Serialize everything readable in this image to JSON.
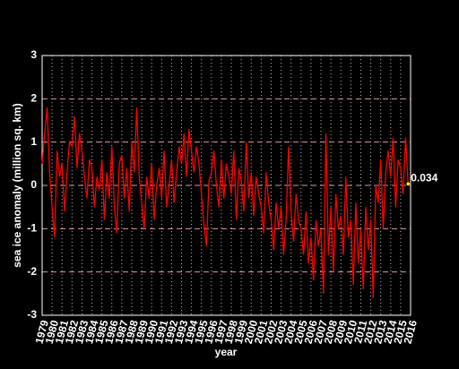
{
  "chart_data": {
    "type": "line",
    "xlabel": "year",
    "ylabel": "sea ice anomaly (million sq. km)",
    "annotation": "0.034",
    "annotation_color": "#ffff00",
    "xlim": [
      1979,
      2016
    ],
    "ylim": [
      -3,
      3
    ],
    "xticks": [
      1979,
      1980,
      1981,
      1982,
      1983,
      1984,
      1985,
      1986,
      1987,
      1988,
      1989,
      1990,
      1991,
      1992,
      1993,
      1994,
      1995,
      1996,
      1997,
      1998,
      1999,
      2000,
      2001,
      2002,
      2003,
      2004,
      2005,
      2006,
      2007,
      2008,
      2009,
      2010,
      2011,
      2012,
      2013,
      2014,
      2015,
      2016
    ],
    "yticks": [
      -3,
      -2,
      -1,
      0,
      1,
      2,
      3
    ],
    "grid": true,
    "x": [
      1979,
      1979.25,
      1979.5,
      1979.75,
      1980,
      1980.25,
      1980.5,
      1980.75,
      1981,
      1981.25,
      1981.5,
      1981.75,
      1982,
      1982.25,
      1982.5,
      1982.75,
      1983,
      1983.25,
      1983.5,
      1983.75,
      1984,
      1984.25,
      1984.5,
      1984.75,
      1985,
      1985.25,
      1985.5,
      1985.75,
      1986,
      1986.25,
      1986.5,
      1986.75,
      1987,
      1987.25,
      1987.5,
      1987.75,
      1988,
      1988.25,
      1988.5,
      1988.75,
      1989,
      1989.25,
      1989.5,
      1989.75,
      1990,
      1990.25,
      1990.5,
      1990.75,
      1991,
      1991.25,
      1991.5,
      1991.75,
      1992,
      1992.25,
      1992.5,
      1992.75,
      1993,
      1993.25,
      1993.5,
      1993.75,
      1994,
      1994.25,
      1994.5,
      1994.75,
      1995,
      1995.25,
      1995.5,
      1995.75,
      1996,
      1996.25,
      1996.5,
      1996.75,
      1997,
      1997.25,
      1997.5,
      1997.75,
      1998,
      1998.25,
      1998.5,
      1998.75,
      1999,
      1999.25,
      1999.5,
      1999.75,
      2000,
      2000.25,
      2000.5,
      2000.75,
      2001,
      2001.25,
      2001.5,
      2001.75,
      2002,
      2002.25,
      2002.5,
      2002.75,
      2003,
      2003.25,
      2003.5,
      2003.75,
      2004,
      2004.25,
      2004.5,
      2004.75,
      2005,
      2005.25,
      2005.5,
      2005.75,
      2006,
      2006.25,
      2006.5,
      2006.75,
      2007,
      2007.25,
      2007.5,
      2007.75,
      2008,
      2008.25,
      2008.5,
      2008.75,
      2009,
      2009.25,
      2009.5,
      2009.75,
      2010,
      2010.25,
      2010.5,
      2010.75,
      2011,
      2011.25,
      2011.5,
      2011.75,
      2012,
      2012.25,
      2012.5,
      2012.75,
      2013,
      2013.25,
      2013.5,
      2013.75,
      2014,
      2014.25,
      2014.5,
      2014.75,
      2015,
      2015.25,
      2015.5,
      2015.75
    ],
    "series": [
      {
        "name": "sea ice anomaly",
        "color": "#ff0000",
        "values": [
          0.5,
          1.2,
          1.8,
          0.3,
          -0.5,
          -1.2,
          0.8,
          0.2,
          0.5,
          -0.6,
          0.3,
          1.0,
          0.9,
          1.6,
          0.4,
          1.2,
          0.8,
          0.2,
          -0.3,
          0.6,
          0.4,
          -0.5,
          0.2,
          -0.1,
          0.6,
          -0.8,
          0.3,
          -0.3,
          0.9,
          -0.5,
          -1.1,
          0.5,
          0.7,
          -0.3,
          0.4,
          -0.6,
          1.0,
          0.3,
          1.8,
          0.2,
          -0.4,
          -1.0,
          0.2,
          -0.3,
          0.5,
          -0.8,
          0.0,
          0.4,
          -0.3,
          0.8,
          -0.5,
          0.0,
          0.6,
          -0.4,
          0.3,
          0.9,
          0.5,
          1.2,
          0.2,
          1.3,
          0.8,
          0.3,
          0.9,
          0.5,
          -0.2,
          -0.9,
          -1.4,
          0.1,
          0.3,
          0.8,
          0.0,
          -0.5,
          0.6,
          -0.3,
          0.5,
          0.2,
          -0.2,
          0.8,
          -0.8,
          0.4,
          0.1,
          -0.6,
          1.0,
          -0.3,
          0.3,
          -0.7,
          0.2,
          -0.2,
          -0.5,
          -1.1,
          0.3,
          -0.4,
          -0.8,
          -1.5,
          -0.4,
          -1.0,
          -0.5,
          -1.6,
          -0.8,
          0.9,
          -0.6,
          -1.3,
          -0.2,
          -0.8,
          -1.0,
          -1.6,
          -0.6,
          -1.8,
          -1.2,
          -2.2,
          -0.8,
          -1.4,
          -1.0,
          -2.5,
          1.2,
          -1.6,
          -0.5,
          -2.0,
          -0.2,
          -1.0,
          -0.7,
          -1.6,
          0.2,
          -1.2,
          -0.8,
          -2.3,
          -0.4,
          -1.8,
          -1.0,
          -2.4,
          -0.5,
          -1.5,
          -0.8,
          -2.6,
          0.0,
          -0.4,
          0.6,
          -1.0,
          0.3,
          0.8,
          0.2,
          1.1,
          -0.5,
          0.6,
          0.4,
          -0.2,
          1.1,
          0.034
        ]
      }
    ]
  }
}
